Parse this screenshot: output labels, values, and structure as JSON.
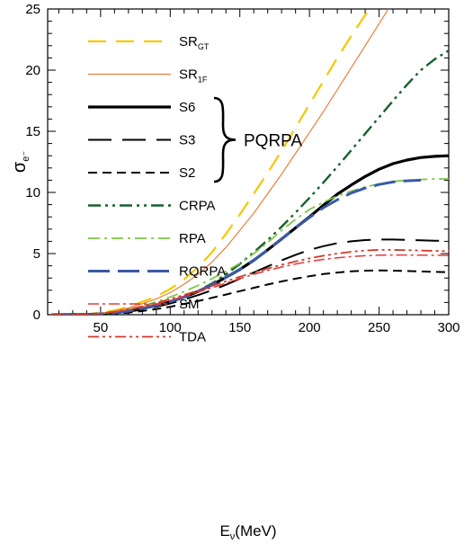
{
  "chart_data": {
    "type": "line",
    "xlabel": "E",
    "xlabel_sub": "ν",
    "xlabel_unit": "(MeV)",
    "ylabel": "σ",
    "ylabel_sub": "e⁻",
    "xlim": [
      12,
      300
    ],
    "ylim": [
      0,
      25
    ],
    "x_ticks": [
      50,
      100,
      150,
      200,
      250,
      300
    ],
    "x_tick_labels": [
      "50",
      "100",
      "150",
      "200",
      "250",
      "300"
    ],
    "y_ticks": [
      0,
      5,
      10,
      15,
      20,
      25
    ],
    "y_tick_labels": [
      "0",
      "5",
      "10",
      "15",
      "20",
      "25"
    ],
    "grid": false,
    "legend_position": "top-left",
    "legend_group_label": "PQRPA",
    "series": [
      {
        "name": "SR",
        "sub": "GT",
        "color": "#f5c800",
        "width": 2.2,
        "dash": "20,11",
        "x": [
          15,
          30,
          40,
          50,
          60,
          70,
          80,
          90,
          100,
          110,
          120,
          130,
          140,
          150,
          160,
          170,
          180,
          190,
          200,
          210,
          220,
          230,
          240,
          250
        ],
        "y": [
          0,
          0.01,
          0.05,
          0.15,
          0.35,
          0.65,
          1.05,
          1.5,
          2.1,
          2.9,
          3.9,
          5.1,
          6.6,
          8.2,
          9.9,
          11.6,
          13.4,
          15.3,
          17.2,
          19.1,
          21.0,
          22.8,
          24.5,
          26.0
        ]
      },
      {
        "name": "SR",
        "sub": "1F",
        "color": "#e88040",
        "width": 1.2,
        "dash": "",
        "x": [
          15,
          30,
          40,
          50,
          60,
          70,
          80,
          90,
          100,
          110,
          120,
          130,
          140,
          150,
          160,
          170,
          180,
          190,
          200,
          210,
          220,
          230,
          240,
          250,
          260
        ],
        "y": [
          0,
          0.01,
          0.04,
          0.12,
          0.3,
          0.55,
          0.9,
          1.3,
          1.8,
          2.5,
          3.3,
          4.3,
          5.5,
          6.9,
          8.3,
          9.9,
          11.5,
          13.2,
          14.9,
          16.6,
          18.4,
          20.2,
          22.0,
          23.8,
          25.6
        ]
      },
      {
        "name": "S6",
        "color": "#000000",
        "width": 3.2,
        "dash": "",
        "x": [
          15,
          40,
          50,
          60,
          70,
          80,
          90,
          100,
          110,
          120,
          130,
          140,
          150,
          160,
          170,
          180,
          190,
          200,
          210,
          220,
          230,
          240,
          250,
          260,
          270,
          280,
          290,
          300
        ],
        "y": [
          0,
          0.02,
          0.06,
          0.15,
          0.3,
          0.5,
          0.75,
          1.05,
          1.45,
          1.9,
          2.45,
          3.05,
          3.7,
          4.45,
          5.3,
          6.2,
          7.1,
          8.0,
          8.95,
          9.85,
          10.6,
          11.3,
          11.9,
          12.35,
          12.65,
          12.85,
          12.95,
          13.0
        ]
      },
      {
        "name": "S3",
        "color": "#000000",
        "width": 2.0,
        "dash": "26,12",
        "x": [
          15,
          40,
          50,
          60,
          70,
          80,
          90,
          100,
          110,
          120,
          130,
          140,
          150,
          160,
          170,
          180,
          190,
          200,
          210,
          220,
          230,
          240,
          250,
          260,
          270,
          280,
          290,
          300
        ],
        "y": [
          0,
          0.02,
          0.05,
          0.12,
          0.25,
          0.42,
          0.65,
          0.92,
          1.25,
          1.6,
          2.0,
          2.45,
          2.95,
          3.45,
          3.95,
          4.45,
          4.9,
          5.3,
          5.6,
          5.85,
          6.0,
          6.1,
          6.15,
          6.15,
          6.12,
          6.08,
          6.05,
          6.05
        ]
      },
      {
        "name": "S2",
        "color": "#000000",
        "width": 2.0,
        "dash": "10,6",
        "x": [
          15,
          40,
          50,
          60,
          70,
          80,
          90,
          100,
          110,
          120,
          130,
          140,
          150,
          160,
          170,
          180,
          190,
          200,
          210,
          220,
          230,
          240,
          250,
          260,
          270,
          280,
          290,
          300
        ],
        "y": [
          0,
          0.01,
          0.03,
          0.08,
          0.17,
          0.3,
          0.46,
          0.65,
          0.88,
          1.12,
          1.38,
          1.65,
          1.93,
          2.2,
          2.47,
          2.72,
          2.95,
          3.15,
          3.32,
          3.45,
          3.55,
          3.6,
          3.62,
          3.6,
          3.57,
          3.54,
          3.5,
          3.48
        ]
      },
      {
        "name": "CRPA",
        "color": "#17612c",
        "width": 2.4,
        "dash": "14,5,3,5,3,5",
        "x": [
          15,
          40,
          50,
          60,
          70,
          80,
          90,
          100,
          110,
          120,
          130,
          140,
          150,
          160,
          170,
          180,
          190,
          200,
          210,
          220,
          230,
          240,
          250,
          260,
          270,
          280,
          290,
          300
        ],
        "y": [
          0,
          0.02,
          0.06,
          0.15,
          0.3,
          0.5,
          0.75,
          1.05,
          1.45,
          1.95,
          2.55,
          3.3,
          4.15,
          5.1,
          6.1,
          7.2,
          8.35,
          9.55,
          10.8,
          12.1,
          13.45,
          14.8,
          16.15,
          17.5,
          18.8,
          20.0,
          20.9,
          21.6
        ]
      },
      {
        "name": "RPA",
        "color": "#7ac943",
        "width": 1.8,
        "dash": "13,5,3,5",
        "x": [
          15,
          40,
          50,
          60,
          70,
          80,
          90,
          100,
          110,
          120,
          130,
          140,
          150,
          160,
          170,
          180,
          190,
          200,
          210,
          220,
          230,
          240,
          250,
          260,
          270,
          280,
          290,
          300
        ],
        "y": [
          0,
          0.03,
          0.1,
          0.22,
          0.42,
          0.7,
          1.05,
          1.45,
          1.9,
          2.4,
          2.95,
          3.55,
          4.2,
          5.0,
          5.9,
          6.9,
          7.8,
          8.6,
          9.2,
          9.7,
          10.1,
          10.45,
          10.7,
          10.9,
          11.0,
          11.05,
          11.1,
          11.1
        ]
      },
      {
        "name": "RQRPA",
        "color": "#3a5aa8",
        "width": 3.0,
        "dash": "24,9",
        "x": [
          15,
          40,
          50,
          60,
          70,
          80,
          90,
          100,
          110,
          120,
          130,
          140,
          150,
          160,
          170,
          180,
          190,
          200,
          210,
          220,
          230,
          240,
          250,
          260,
          270,
          280
        ],
        "y": [
          0,
          0.02,
          0.06,
          0.15,
          0.3,
          0.5,
          0.75,
          1.05,
          1.45,
          1.9,
          2.45,
          3.05,
          3.7,
          4.45,
          5.3,
          6.2,
          7.1,
          7.95,
          8.75,
          9.4,
          9.95,
          10.35,
          10.65,
          10.85,
          10.95,
          11.0
        ]
      },
      {
        "name": "SM",
        "color": "#e03a3a",
        "width": 1.5,
        "dash": "12,4,3,4",
        "x": [
          15,
          40,
          50,
          60,
          70,
          80,
          90,
          100,
          110,
          120,
          130,
          140,
          150,
          160,
          170,
          180,
          190,
          200,
          210,
          220,
          230,
          240,
          250,
          260,
          270,
          280,
          290,
          300
        ],
        "y": [
          0,
          0.03,
          0.1,
          0.22,
          0.4,
          0.62,
          0.88,
          1.18,
          1.5,
          1.85,
          2.2,
          2.58,
          2.95,
          3.3,
          3.62,
          3.9,
          4.15,
          4.35,
          4.52,
          4.65,
          4.75,
          4.82,
          4.87,
          4.88,
          4.88,
          4.87,
          4.86,
          4.85
        ]
      },
      {
        "name": "TDA",
        "color": "#d03a2a",
        "width": 1.8,
        "dash": "12,4,3,4,3,4",
        "x": [
          15,
          40,
          50,
          60,
          70,
          80,
          90,
          100,
          110,
          120,
          130,
          140,
          150,
          160,
          170,
          180,
          190,
          200,
          210,
          220,
          230,
          240,
          250,
          260,
          270,
          280,
          290,
          300
        ],
        "y": [
          0,
          0.03,
          0.1,
          0.24,
          0.44,
          0.68,
          0.96,
          1.28,
          1.62,
          1.98,
          2.35,
          2.73,
          3.1,
          3.45,
          3.78,
          4.08,
          4.35,
          4.6,
          4.82,
          5.0,
          5.15,
          5.25,
          5.3,
          5.3,
          5.28,
          5.25,
          5.22,
          5.2
        ]
      }
    ]
  }
}
